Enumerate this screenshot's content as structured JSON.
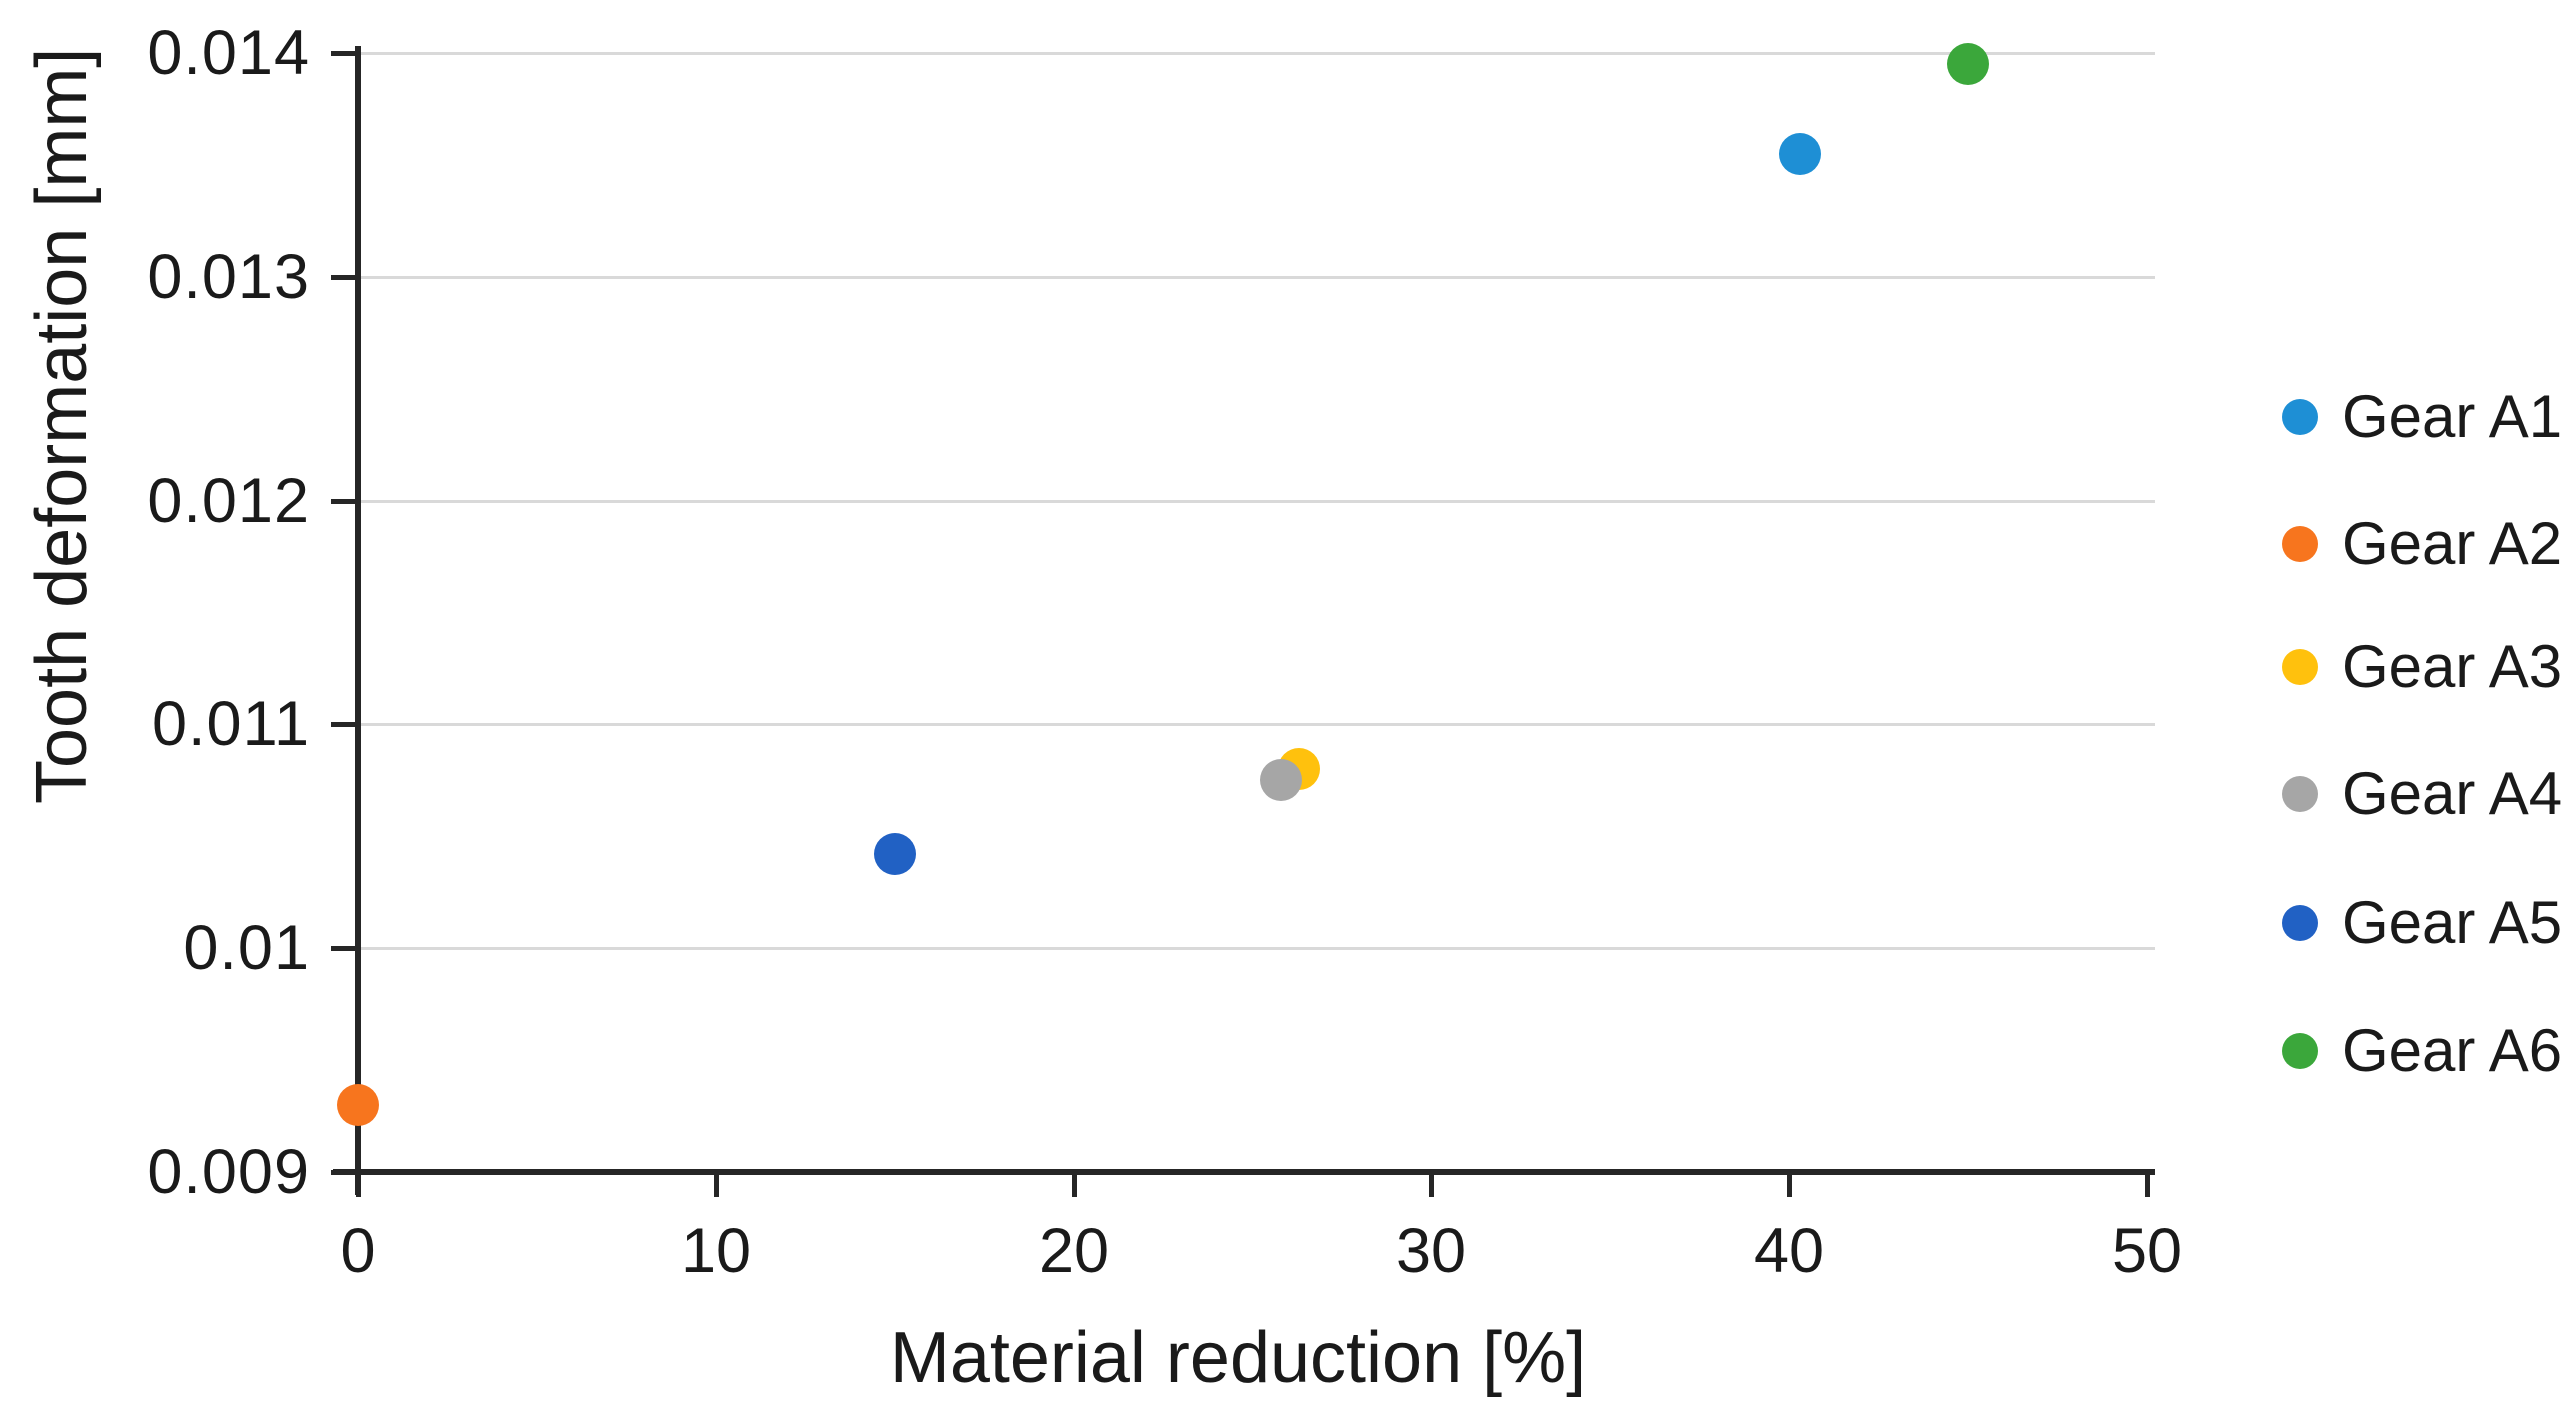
{
  "chart_data": {
    "type": "scatter",
    "title": "",
    "xlabel": "Material reduction [%]",
    "ylabel": "Tooth deformation [mm]",
    "xlim": [
      0,
      50
    ],
    "ylim": [
      0.009,
      0.014
    ],
    "x_ticks": [
      "0",
      "10",
      "20",
      "30",
      "40",
      "50"
    ],
    "y_ticks": [
      "0.009",
      "0.01",
      "0.011",
      "0.012",
      "0.013",
      "0.014"
    ],
    "grid": "horizontal-only",
    "gridline_color": "#d9d9d9",
    "axis_color": "#262626",
    "legend_position": "right",
    "series": [
      {
        "name": "Gear A1",
        "color": "#1E8FD5",
        "points": [
          {
            "x": 40.3,
            "y": 0.01355
          }
        ]
      },
      {
        "name": "Gear A2",
        "color": "#F7751E",
        "points": [
          {
            "x": 0,
            "y": 0.0093
          }
        ]
      },
      {
        "name": "Gear A3",
        "color": "#FFC10D",
        "points": [
          {
            "x": 26.3,
            "y": 0.0108
          }
        ]
      },
      {
        "name": "Gear A4",
        "color": "#A6A6A6",
        "points": [
          {
            "x": 25.8,
            "y": 0.01075
          }
        ]
      },
      {
        "name": "Gear A5",
        "color": "#2161C4",
        "points": [
          {
            "x": 15,
            "y": 0.01042
          }
        ]
      },
      {
        "name": "Gear A6",
        "color": "#3BA73B",
        "points": [
          {
            "x": 45,
            "y": 0.01395
          }
        ]
      }
    ]
  }
}
